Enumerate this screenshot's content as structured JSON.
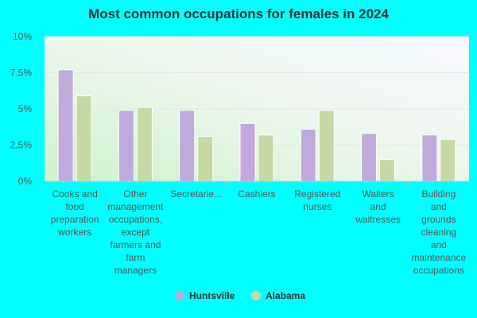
{
  "chart_data": {
    "type": "bar",
    "title": "Most common occupations for females in 2024",
    "xlabel": "",
    "ylabel": "",
    "ylim": [
      0,
      10
    ],
    "y_ticks": [
      "0%",
      "2.5%",
      "5%",
      "7.5%",
      "10%"
    ],
    "categories": [
      "Cooks and food preparation workers",
      "Other management occupations, except farmers and farm managers",
      "Secretarie...",
      "Cashiers",
      "Registered nurses",
      "Waiters and waitresses",
      "Building and grounds cleaning and maintenance occupations"
    ],
    "category_lines": [
      [
        "Cooks and",
        "food",
        "preparation",
        "workers"
      ],
      [
        "Other",
        "management",
        "occupations,",
        "except",
        "farmers and",
        "farm",
        "managers"
      ],
      [
        "Secretarie..."
      ],
      [
        "Cashiers"
      ],
      [
        "Registered",
        "nurses"
      ],
      [
        "Waiters",
        "and",
        "waitresses"
      ],
      [
        "Building",
        "and",
        "grounds",
        "cleaning",
        "and",
        "maintenance",
        "occupations"
      ]
    ],
    "series": [
      {
        "name": "Huntsville",
        "color": "#c0a9db",
        "values": [
          7.7,
          4.9,
          4.9,
          4.0,
          3.6,
          3.3,
          3.2
        ]
      },
      {
        "name": "Alabama",
        "color": "#c5d9a4",
        "values": [
          5.9,
          5.1,
          3.1,
          3.2,
          4.9,
          1.5,
          2.9
        ]
      }
    ],
    "legend_position": "bottom",
    "grid": true
  }
}
